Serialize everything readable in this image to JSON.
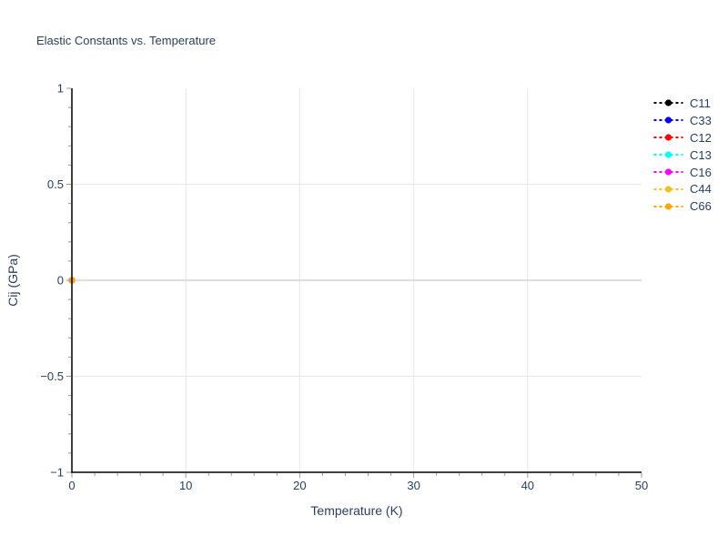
{
  "chart_data": {
    "type": "scatter",
    "title": "Elastic Constants vs. Temperature",
    "xlabel": "Temperature (K)",
    "ylabel": "Cij (GPa)",
    "xlim": [
      0,
      50
    ],
    "ylim": [
      -1,
      1
    ],
    "x_ticks": [
      0,
      10,
      20,
      30,
      40,
      50
    ],
    "x_tick_labels": [
      "0",
      "10",
      "20",
      "30",
      "40",
      "50"
    ],
    "y_ticks": [
      -1,
      -0.5,
      0,
      0.5,
      1
    ],
    "y_tick_labels": [
      "−1",
      "−0.5",
      "0",
      "0.5",
      "1"
    ],
    "x_minor_step": 2,
    "y_minor_step": 0.1,
    "x_gridlines": [
      10,
      20,
      30,
      40
    ],
    "y_gridlines": [
      -0.5,
      0.5
    ],
    "zeroline_y": 0,
    "grid": true,
    "legend_position": "outside-top-right",
    "line_dash": "dot",
    "marker": "circle",
    "series": [
      {
        "name": "C11",
        "color": "#000000",
        "x": [
          0
        ],
        "y": [
          0
        ]
      },
      {
        "name": "C33",
        "color": "#0000ff",
        "x": [
          0
        ],
        "y": [
          0
        ]
      },
      {
        "name": "C12",
        "color": "#ff0000",
        "x": [
          0
        ],
        "y": [
          0
        ]
      },
      {
        "name": "C13",
        "color": "#00ffff",
        "x": [
          0
        ],
        "y": [
          0
        ]
      },
      {
        "name": "C16",
        "color": "#ff00ff",
        "x": [
          0
        ],
        "y": [
          0
        ]
      },
      {
        "name": "C44",
        "color": "#edc120",
        "x": [
          0
        ],
        "y": [
          0
        ]
      },
      {
        "name": "C66",
        "color": "#ffa500",
        "x": [
          0
        ],
        "y": [
          0
        ]
      }
    ],
    "colors": {
      "font": "#2a3f5f",
      "background": "#ffffff",
      "gridline": "#ebebeb",
      "zeroline": "#d4d4d4",
      "axis_line": "#000000",
      "tick": "#999999"
    }
  }
}
